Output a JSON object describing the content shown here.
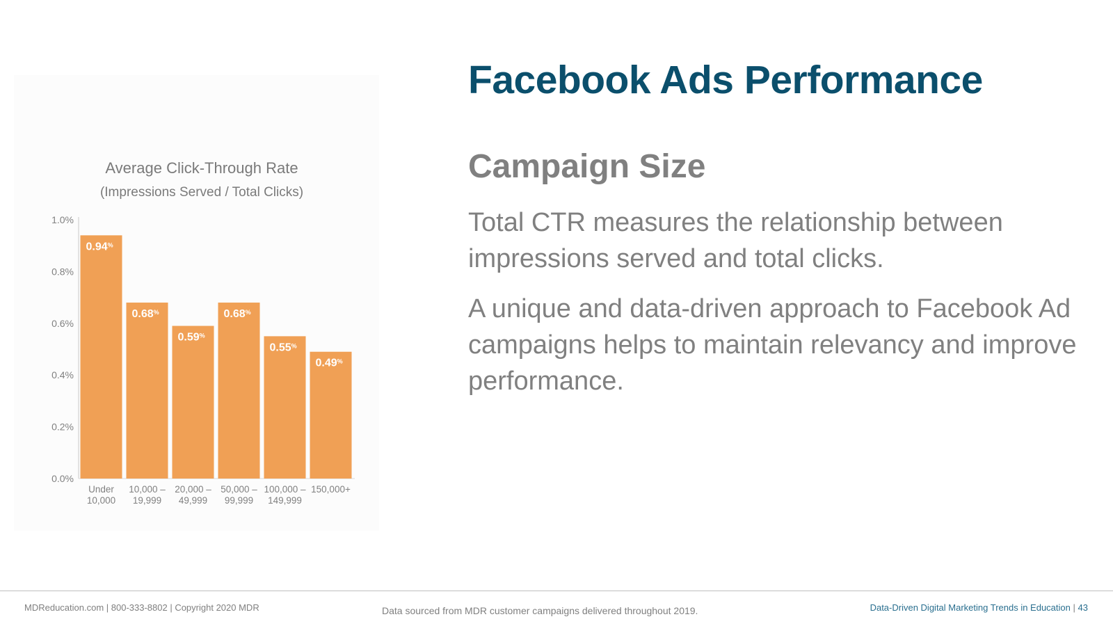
{
  "slide": {
    "title": "Facebook Ads Performance",
    "heading": "Campaign Size",
    "paragraphs": [
      "Total CTR measures the relationship between impressions served and total clicks.",
      "A unique and data-driven approach to Facebook Ad campaigns helps to maintain relevancy and improve performance."
    ]
  },
  "footer": {
    "left": "MDReducation.com  |  800-333-8802  |  Copyright 2020 MDR",
    "center": "Data sourced from MDR customer campaigns delivered throughout 2019.",
    "right_label": "Data-Driven Digital Marketing Trends in Education",
    "separator": "|",
    "page_number": "43"
  },
  "colors": {
    "title": "#0b4f6c",
    "bar": "#f0a055",
    "text_gray": "#808080",
    "footer_right": "#2a6f8f"
  },
  "chart_data": {
    "type": "bar",
    "title": "Average Click-Through Rate",
    "subtitle": "(Impressions Served / Total Clicks)",
    "categories": [
      [
        "Under",
        "10,000"
      ],
      [
        "10,000 –",
        "19,999"
      ],
      [
        "20,000 –",
        "49,999"
      ],
      [
        "50,000 –",
        "99,999"
      ],
      [
        "100,000 –",
        "149,999"
      ],
      [
        "150,000+"
      ]
    ],
    "values": [
      0.94,
      0.68,
      0.59,
      0.68,
      0.55,
      0.49
    ],
    "value_labels": [
      "0.94",
      "0.68",
      "0.59",
      "0.68",
      "0.55",
      "0.49"
    ],
    "value_suffix": "%",
    "ylim": [
      0,
      1.0
    ],
    "yticks": [
      0.0,
      0.2,
      0.4,
      0.6,
      0.8,
      1.0
    ],
    "ytick_labels": [
      "0.0%",
      "0.2%",
      "0.4%",
      "0.6%",
      "0.8%",
      "1.0%"
    ],
    "grid": false,
    "legend": "none"
  }
}
